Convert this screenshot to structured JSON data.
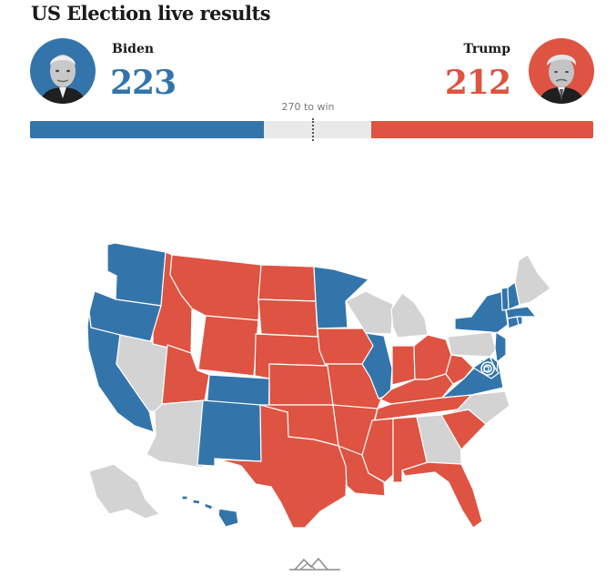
{
  "title": "US Election live results",
  "colors": {
    "biden": "#3375ab",
    "trump": "#de5341",
    "undecided": "#d3d3d3",
    "bar_background": "#e9e9e9"
  },
  "candidates": {
    "biden": {
      "name": "Biden",
      "votes": "223",
      "electoral_votes": 223,
      "portrait": "biden-portrait"
    },
    "trump": {
      "name": "Trump",
      "votes": "212",
      "electoral_votes": 212,
      "portrait": "trump-portrait"
    }
  },
  "win_label": "270 to win",
  "total_electoral_votes": 538,
  "threshold": 270,
  "state_results": {
    "WA": "biden",
    "OR": "biden",
    "CA": "biden",
    "NV": "undecided",
    "ID": "trump",
    "MT": "trump",
    "WY": "trump",
    "UT": "trump",
    "AZ": "undecided",
    "CO": "biden",
    "NM": "biden",
    "ND": "trump",
    "SD": "trump",
    "NE": "trump",
    "KS": "trump",
    "OK": "trump",
    "TX": "trump",
    "MN": "biden",
    "IA": "trump",
    "MO": "trump",
    "AR": "trump",
    "LA": "trump",
    "WI": "undecided",
    "IL": "biden",
    "MI": "undecided",
    "IN": "trump",
    "OH": "trump",
    "KY": "trump",
    "TN": "trump",
    "MS": "trump",
    "AL": "trump",
    "GA": "undecided",
    "FL": "trump",
    "SC": "trump",
    "NC": "undecided",
    "VA": "biden",
    "WV": "trump",
    "PA": "undecided",
    "NY": "biden",
    "NJ": "biden",
    "DE": "biden",
    "MD": "biden",
    "DC": "biden",
    "CT": "biden",
    "RI": "biden",
    "MA": "biden",
    "VT": "biden",
    "NH": "biden",
    "ME": "undecided",
    "AK": "undecided",
    "HI": "biden"
  },
  "logo_icon": "mountain-logo-icon"
}
